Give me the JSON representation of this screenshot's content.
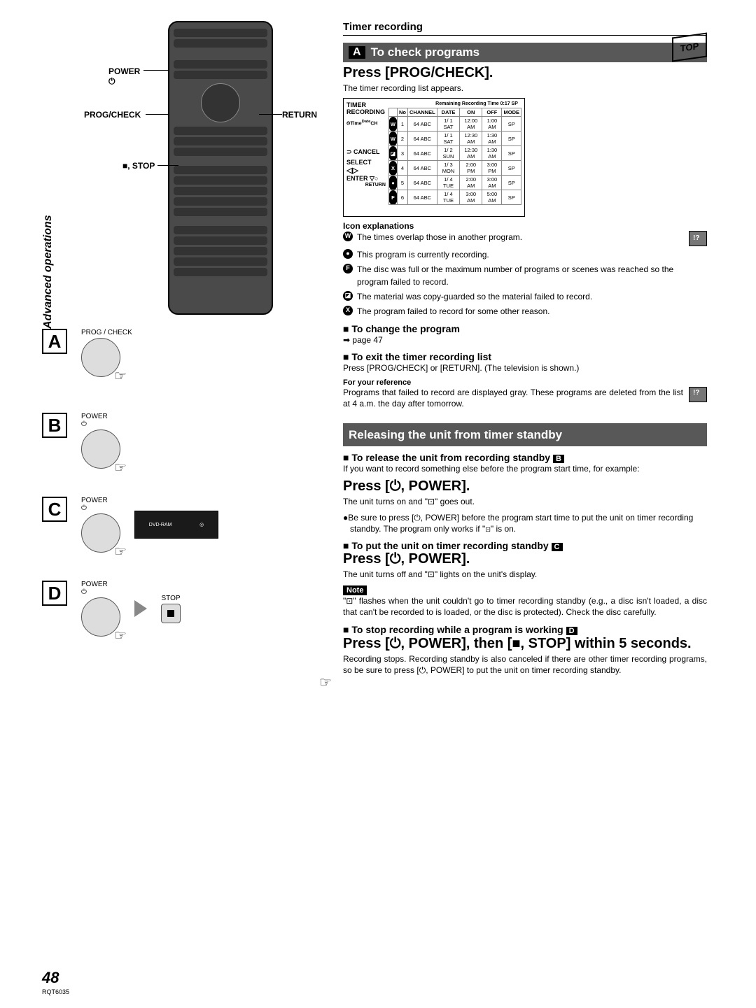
{
  "page_number": "48",
  "doc_code": "RQT6035",
  "sidebar": "Advanced operations",
  "top_flag": "TOP",
  "header_top": "Timer recording",
  "remote": {
    "power": "POWER",
    "power_sym": "⏻",
    "progcheck": "PROG/CHECK",
    "return": "RETURN",
    "stop": "■, STOP"
  },
  "steps": {
    "a": {
      "letter": "A",
      "btn_label": "PROG / CHECK"
    },
    "b": {
      "letter": "B",
      "btn_label": "POWER",
      "btn_sym": "⏻"
    },
    "c": {
      "letter": "C",
      "btn_label": "POWER",
      "btn_sym": "⏻",
      "unit": "DVD-RAM"
    },
    "d": {
      "letter": "D",
      "btn_label": "POWER",
      "btn_sym": "⏻",
      "stop_label": "STOP"
    }
  },
  "sectA": {
    "letter": "A",
    "title": "To check programs",
    "press": "Press [PROG/CHECK].",
    "desc": "The timer recording list appears.",
    "icon_head": "Icon explanations",
    "timer": {
      "title1": "TIMER",
      "title2": "RECORDING",
      "remain": "Remaining Recording Time 0:17 SP",
      "cancel": "⊃ CANCEL",
      "select": "SELECT",
      "enter": "ENTER",
      "ret": "RETURN",
      "cols": [
        "No",
        "CHANNEL",
        "DATE",
        "ON",
        "OFF",
        "MODE"
      ],
      "rows": [
        [
          "1",
          "64 ABC",
          "1/ 1 SAT",
          "12:00 AM",
          "1:00 AM",
          "SP"
        ],
        [
          "2",
          "64 ABC",
          "1/ 1 SAT",
          "12:30 AM",
          "1:30 AM",
          "SP"
        ],
        [
          "3",
          "64 ABC",
          "1/ 2 SUN",
          "12:30 AM",
          "1:30 AM",
          "SP"
        ],
        [
          "4",
          "64 ABC",
          "1/ 3 MON",
          "2:00 PM",
          "3:00 PM",
          "SP"
        ],
        [
          "5",
          "64 ABC",
          "1/ 4 TUE",
          "2:00 AM",
          "3:00 AM",
          "SP"
        ],
        [
          "6",
          "64 ABC",
          "1/ 4 TUE",
          "3:00 AM",
          "5:00 AM",
          "SP"
        ]
      ],
      "row_icons": [
        "W",
        "W",
        "◪",
        "X",
        "●",
        "F"
      ]
    },
    "icons": [
      {
        "sym": "W",
        "text": "The times overlap those in another program."
      },
      {
        "sym": "●",
        "text": "This program is currently recording."
      },
      {
        "sym": "F",
        "text": "The disc was full or the maximum number of programs or scenes was reached so the program failed to record."
      },
      {
        "sym": "◪",
        "text": "The material was copy-guarded so the material failed to record."
      },
      {
        "sym": "X",
        "text": "The program failed to record for some other reason."
      }
    ],
    "change": "To change the program",
    "change_ref": "➡ page 47",
    "exit": "To exit the timer recording list",
    "exit_text": "Press [PROG/CHECK] or [RETURN]. (The television is shown.)",
    "ref_head": "For your reference",
    "ref_text": "Programs that failed to record are displayed gray. These programs are deleted from the list at 4 a.m. the day after tomorrow."
  },
  "sectB": {
    "title": "Releasing the unit from timer standby",
    "sub1": "To release the unit from recording standby",
    "sub1_box": "B",
    "sub1_text": "If you want to record something else before the program start time, for example:",
    "press1": "Press [⏻, POWER].",
    "press1_desc": "The unit turns on and \"⊡\" goes out.",
    "press1_bullet": "Be sure to press [⏻, POWER] before the program start time to put the unit on timer recording standby. The program only works if \"⊡\" is on.",
    "sub2": "To put the unit on timer recording standby",
    "sub2_box": "C",
    "press2": "Press [⏻, POWER].",
    "press2_desc": "The unit turns off and \"⊡\" lights on the unit's display.",
    "note": "Note",
    "note_text": "\"⊡\" flashes when the unit couldn't go to timer recording standby (e.g., a disc isn't loaded, a disc that can't be recorded to is loaded, or the disc is protected). Check the disc carefully.",
    "sub3": "To stop recording while a program is working",
    "sub3_box": "D",
    "press3": "Press [⏻, POWER], then [■, STOP] within 5 seconds.",
    "press3_desc": "Recording stops. Recording standby is also canceled if there are other timer recording programs, so be sure to press [⏻, POWER] to put the unit on timer recording standby."
  }
}
